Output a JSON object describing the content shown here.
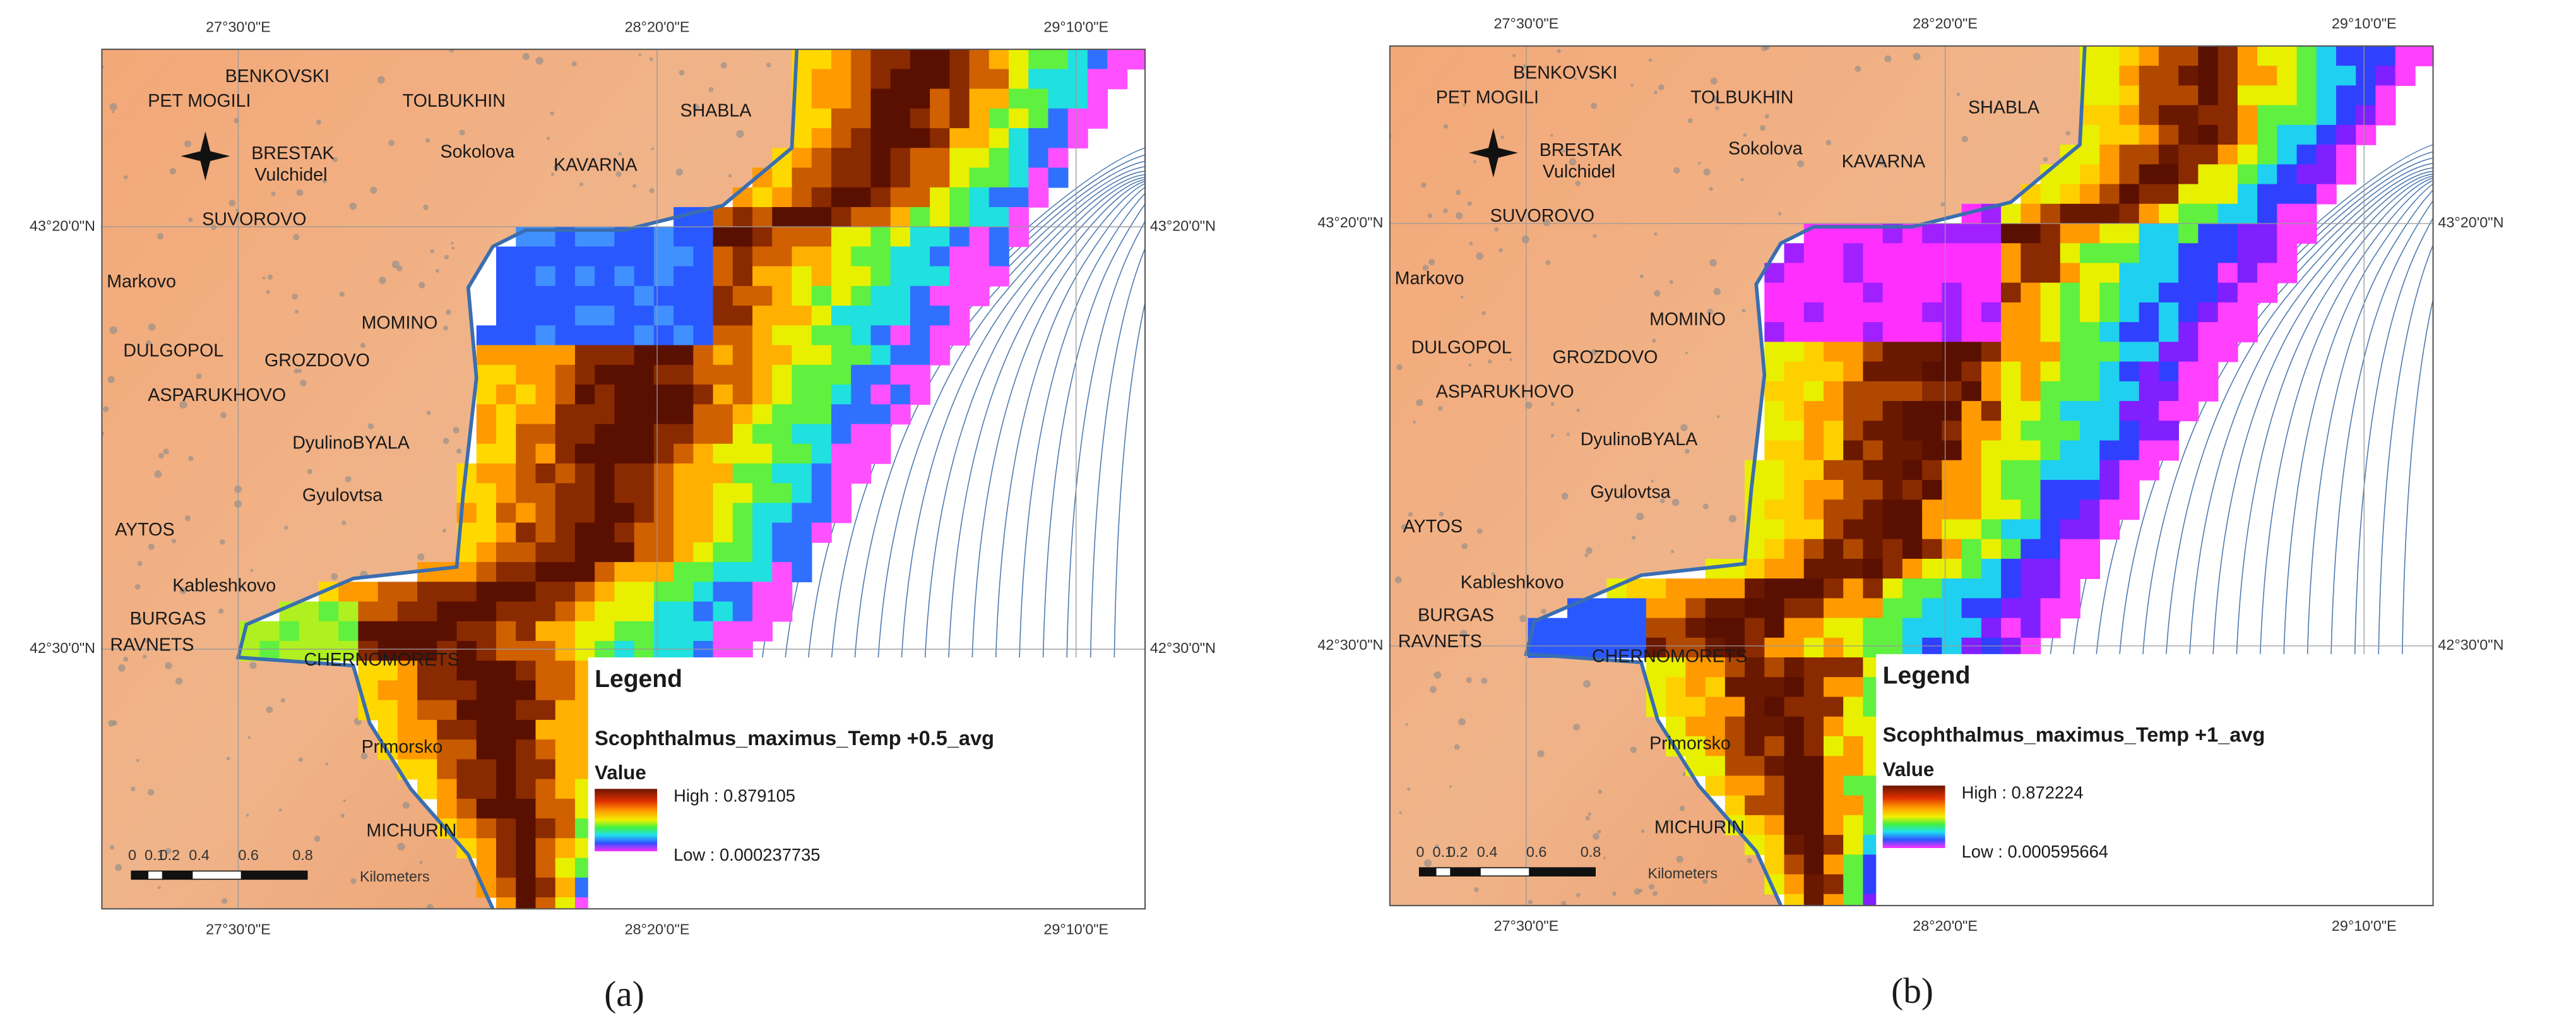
{
  "lon_ticks": [
    "27°30'0\"E",
    "28°20'0\"E",
    "29°10'0\"E"
  ],
  "lat_ticks": [
    "43°20'0\"N",
    "42°30'0\"N"
  ],
  "places": [
    "BENKOVSKI",
    "PET MOGILI",
    "TOLBUKHIN",
    "SHABLA",
    "BRESTAK",
    "Sokolova",
    "KAVARNA",
    "Vulchidel",
    "SUVOROVO",
    "Markovo",
    "MOMINO",
    "DULGOPOL",
    "GROZDOVO",
    "ASPARUKHOVO",
    "DyulinoBYALA",
    "Gyulovtsa",
    "AYTOS",
    "Kableshkovo",
    "BURGAS",
    "RAVNETS",
    "CHERNOMORETS",
    "Primorsko",
    "MICHURIN"
  ],
  "scale_bar": {
    "ticks": [
      "0",
      "0.1",
      "0.2",
      "0.4",
      "0.6",
      "0.8"
    ],
    "unit": "Kilometers"
  },
  "legend_title": "Legend",
  "legend_field": "Value",
  "panels": [
    {
      "caption": "(a)",
      "layer": "Scophthalmus_maximus_Temp +0.5_avg",
      "high": "High : 0.879105",
      "low": "Low : 0.000237735"
    },
    {
      "caption": "(b)",
      "layer": "Scophthalmus_maximus_Temp +1_avg",
      "high": "High : 0.872224",
      "low": "Low : 0.000595664"
    }
  ]
}
